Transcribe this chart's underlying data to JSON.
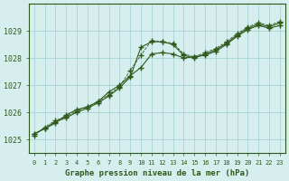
{
  "title": "Graphe pression niveau de la mer (hPa)",
  "background_color": "#d6eeee",
  "grid_color": "#aad4d4",
  "line_color": "#2d5a1b",
  "x_labels": [
    0,
    1,
    2,
    3,
    4,
    5,
    6,
    7,
    8,
    9,
    10,
    11,
    12,
    13,
    14,
    15,
    16,
    17,
    18,
    19,
    20,
    21,
    22,
    23
  ],
  "ylim": [
    1024.5,
    1030.0
  ],
  "yticks": [
    1025,
    1026,
    1027,
    1028,
    1029
  ],
  "series1": [
    1025.2,
    1025.4,
    1025.6,
    1025.9,
    1026.1,
    1026.2,
    1026.4,
    1026.75,
    1027.0,
    1027.35,
    1027.65,
    1028.15,
    1028.2,
    1028.15,
    1028.0,
    1028.05,
    1028.1,
    1028.25,
    1028.5,
    1028.8,
    1029.05,
    1029.2,
    1029.1,
    1029.2
  ],
  "series2": [
    1025.2,
    1025.4,
    1025.65,
    1025.8,
    1026.0,
    1026.15,
    1026.35,
    1026.6,
    1026.9,
    1027.3,
    1028.4,
    1028.6,
    1028.6,
    1028.5,
    1028.1,
    1028.0,
    1028.15,
    1028.3,
    1028.55,
    1028.85,
    1029.1,
    1029.25,
    1029.15,
    1029.3
  ],
  "series3": [
    1025.15,
    1025.45,
    1025.7,
    1025.85,
    1026.05,
    1026.2,
    1026.4,
    1026.65,
    1026.95,
    1027.55,
    1028.1,
    1028.65,
    1028.6,
    1028.55,
    1028.15,
    1028.05,
    1028.2,
    1028.35,
    1028.6,
    1028.9,
    1029.15,
    1029.3,
    1029.2,
    1029.35
  ],
  "lw_solid": 0.8,
  "lw_dash": 0.6
}
